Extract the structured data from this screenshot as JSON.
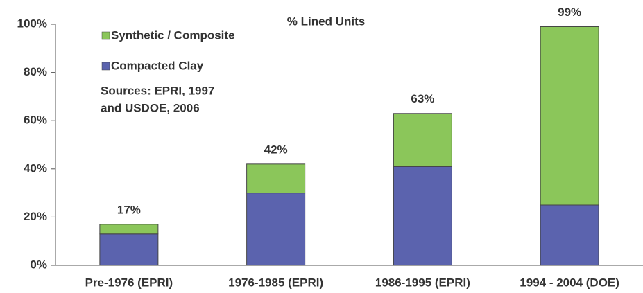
{
  "chart_data": {
    "type": "stacked_bar",
    "title": "% Lined Units",
    "categories": [
      "Pre-1976 (EPRI)",
      "1976-1985 (EPRI)",
      "1986-1995 (EPRI)",
      "1994 - 2004 (DOE)"
    ],
    "series": [
      {
        "name": "Compacted Clay",
        "color": "#5b63ae",
        "values": [
          13,
          30,
          41,
          25
        ]
      },
      {
        "name": "Synthetic / Composite",
        "color": "#8bc65a",
        "values": [
          4,
          12,
          22,
          74
        ]
      }
    ],
    "totals": {
      "values": [
        17,
        42,
        63,
        99
      ],
      "value_labels": [
        "17%",
        "42%",
        "63%",
        "99%"
      ]
    },
    "annotation": [
      "Sources: EPRI, 1997",
      "and USDOE, 2006"
    ],
    "ylim": [
      0,
      100
    ],
    "yticks": [
      {
        "value": 0,
        "label": "0%"
      },
      {
        "value": 20,
        "label": "20%"
      },
      {
        "value": 40,
        "label": "40%"
      },
      {
        "value": 60,
        "label": "60%"
      },
      {
        "value": 80,
        "label": "80%"
      },
      {
        "value": 100,
        "label": "100%"
      }
    ],
    "legend": "upper left"
  }
}
